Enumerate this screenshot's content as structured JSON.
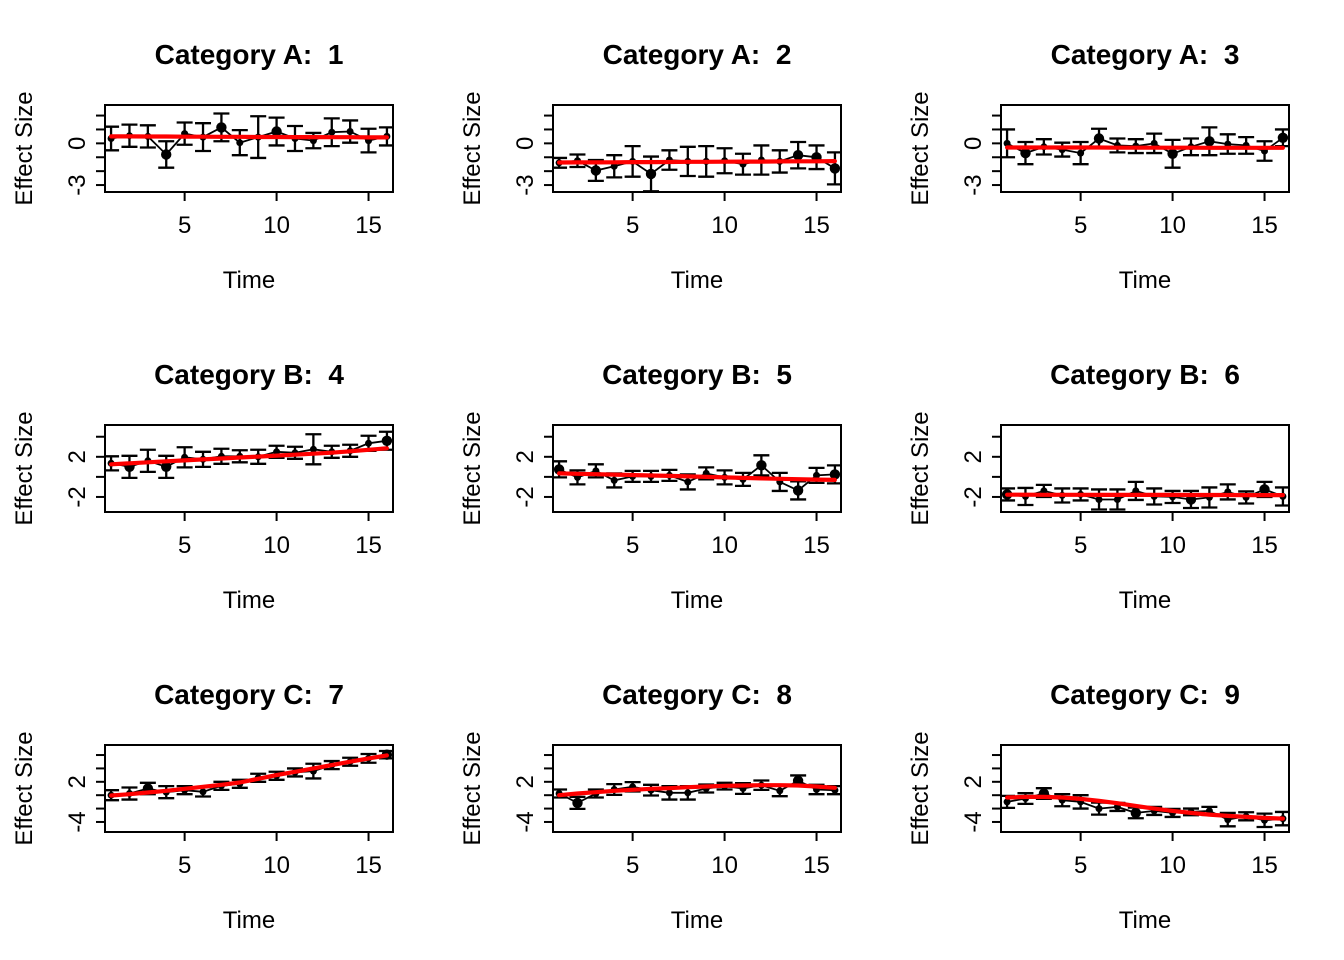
{
  "figure": {
    "background": "#ffffff",
    "trend_color": "#ff0000",
    "point_color": "#000000",
    "xlabel": "Time",
    "ylabel": "Effect Size",
    "x_values": [
      1,
      2,
      3,
      4,
      5,
      6,
      7,
      8,
      9,
      10,
      11,
      12,
      13,
      14,
      15,
      16
    ],
    "xlim": [
      0.67,
      16.33
    ],
    "x_ticks": {
      "values": [
        5,
        10,
        15
      ],
      "labels": [
        "5",
        "10",
        "15"
      ]
    }
  },
  "chart_data": [
    {
      "type": "scatter",
      "title": "Category A:  1",
      "xlabel": "Time",
      "ylabel": "Effect Size",
      "ylim": [
        -3.5,
        2.76
      ],
      "yticks": {
        "values": [
          2,
          1,
          0,
          -1,
          -2,
          -3
        ],
        "labels": [
          "",
          "",
          "0",
          "",
          "",
          "-3"
        ]
      },
      "y": [
        0.35,
        0.55,
        0.5,
        -0.8,
        0.7,
        0.45,
        1.15,
        0.05,
        0.45,
        0.85,
        0.35,
        0.2,
        0.8,
        0.85,
        0.2,
        0.5
      ],
      "se": [
        0.85,
        0.8,
        0.8,
        0.95,
        0.8,
        1.0,
        1.0,
        0.9,
        1.5,
        1.0,
        0.9,
        0.55,
        1.0,
        0.8,
        0.85,
        0.65
      ],
      "trend": [
        0.5,
        0.5,
        0.49,
        0.49,
        0.48,
        0.48,
        0.47,
        0.47,
        0.46,
        0.46,
        0.45,
        0.45,
        0.44,
        0.44,
        0.43,
        0.43
      ],
      "big_points": [
        4,
        7,
        10
      ]
    },
    {
      "type": "scatter",
      "title": "Category A:  2",
      "xlabel": "Time",
      "ylabel": "Effect Size",
      "ylim": [
        -3.5,
        2.76
      ],
      "yticks": {
        "values": [
          2,
          1,
          0,
          -1,
          -2,
          -3
        ],
        "labels": [
          "",
          "",
          "0",
          "",
          "",
          "-3"
        ]
      },
      "y": [
        -1.4,
        -1.25,
        -1.95,
        -1.65,
        -1.3,
        -2.2,
        -1.2,
        -1.3,
        -1.3,
        -1.25,
        -1.5,
        -1.2,
        -1.3,
        -0.85,
        -1.0,
        -1.8
      ],
      "se": [
        0.35,
        0.45,
        0.75,
        0.8,
        1.1,
        1.25,
        0.7,
        1.05,
        1.1,
        0.9,
        0.75,
        1.05,
        0.8,
        0.95,
        0.85,
        1.15
      ],
      "trend": [
        -1.38,
        -1.37,
        -1.37,
        -1.36,
        -1.35,
        -1.35,
        -1.34,
        -1.33,
        -1.33,
        -1.32,
        -1.31,
        -1.31,
        -1.3,
        -1.29,
        -1.29,
        -1.28
      ],
      "big_points": [
        3,
        6,
        14,
        15,
        16
      ]
    },
    {
      "type": "scatter",
      "title": "Category A:  3",
      "xlabel": "Time",
      "ylabel": "Effect Size",
      "ylim": [
        -3.5,
        2.76
      ],
      "yticks": {
        "values": [
          2,
          1,
          0,
          -1,
          -2,
          -3
        ],
        "labels": [
          "",
          "",
          "0",
          "",
          "",
          "-3"
        ]
      },
      "y": [
        0.0,
        -0.7,
        -0.25,
        -0.45,
        -0.7,
        0.35,
        -0.15,
        -0.2,
        0.0,
        -0.75,
        -0.25,
        0.15,
        -0.05,
        -0.15,
        -0.55,
        0.4
      ],
      "se": [
        1.0,
        0.8,
        0.55,
        0.5,
        0.8,
        0.7,
        0.5,
        0.5,
        0.7,
        1.0,
        0.6,
        1.0,
        0.7,
        0.6,
        0.7,
        0.6
      ],
      "trend": [
        -0.3,
        -0.3,
        -0.3,
        -0.3,
        -0.3,
        -0.3,
        -0.31,
        -0.31,
        -0.31,
        -0.31,
        -0.31,
        -0.32,
        -0.32,
        -0.32,
        -0.32,
        -0.32
      ],
      "big_points": [
        2,
        6,
        10,
        12,
        16
      ]
    },
    {
      "type": "scatter",
      "title": "Category B:  4",
      "xlabel": "Time",
      "ylabel": "Effect Size",
      "ylim": [
        -3.5,
        5.17
      ],
      "yticks": {
        "values": [
          4,
          2,
          0,
          -2
        ],
        "labels": [
          "",
          "2",
          "",
          "-2"
        ]
      },
      "y": [
        1.35,
        1.0,
        1.6,
        1.0,
        1.95,
        1.75,
        2.05,
        2.05,
        2.0,
        2.5,
        2.4,
        2.75,
        2.5,
        2.6,
        3.35,
        3.6
      ],
      "se": [
        0.7,
        1.1,
        1.1,
        1.1,
        1.0,
        0.75,
        0.75,
        0.6,
        0.7,
        0.6,
        0.6,
        1.5,
        0.6,
        0.6,
        0.75,
        0.9
      ],
      "trend": [
        1.25,
        1.35,
        1.45,
        1.55,
        1.64,
        1.74,
        1.83,
        1.93,
        2.02,
        2.12,
        2.21,
        2.31,
        2.41,
        2.55,
        2.7,
        2.85
      ],
      "big_points": [
        2,
        4,
        16
      ]
    },
    {
      "type": "scatter",
      "title": "Category B:  5",
      "xlabel": "Time",
      "ylabel": "Effect Size",
      "ylim": [
        -3.5,
        5.17
      ],
      "yticks": {
        "values": [
          4,
          2,
          0,
          -2
        ],
        "labels": [
          "",
          "2",
          "",
          "-2"
        ]
      },
      "y": [
        0.75,
        -0.05,
        0.6,
        -0.35,
        0.05,
        0.05,
        0.15,
        -0.5,
        0.35,
        -0.05,
        -0.25,
        1.15,
        -0.5,
        -1.35,
        0.15,
        0.25
      ],
      "se": [
        0.8,
        0.7,
        0.65,
        0.7,
        0.55,
        0.55,
        0.55,
        0.75,
        0.6,
        0.7,
        0.65,
        1.0,
        0.9,
        0.9,
        0.75,
        0.9
      ],
      "trend": [
        0.35,
        0.31,
        0.27,
        0.23,
        0.19,
        0.14,
        0.1,
        0.05,
        0.0,
        -0.05,
        -0.1,
        -0.15,
        -0.19,
        -0.23,
        -0.27,
        -0.3
      ],
      "big_points": [
        1,
        12,
        14,
        16
      ]
    },
    {
      "type": "scatter",
      "title": "Category B:  6",
      "xlabel": "Time",
      "ylabel": "Effect Size",
      "ylim": [
        -3.5,
        5.17
      ],
      "yticks": {
        "values": [
          4,
          2,
          0,
          -2
        ],
        "labels": [
          "",
          "2",
          "",
          "-2"
        ]
      },
      "y": [
        -1.75,
        -1.95,
        -1.4,
        -1.85,
        -1.75,
        -2.25,
        -2.25,
        -1.4,
        -1.95,
        -2.0,
        -2.25,
        -2.05,
        -1.5,
        -2.05,
        -1.25,
        -1.95
      ],
      "se": [
        0.6,
        0.85,
        0.6,
        0.7,
        0.6,
        1.0,
        1.0,
        0.9,
        0.8,
        0.6,
        0.85,
        1.0,
        0.75,
        0.6,
        0.75,
        0.9
      ],
      "trend": [
        -1.78,
        -1.78,
        -1.79,
        -1.79,
        -1.79,
        -1.8,
        -1.8,
        -1.8,
        -1.8,
        -1.8,
        -1.81,
        -1.81,
        -1.81,
        -1.82,
        -1.82,
        -1.82
      ],
      "big_points": [
        1,
        11,
        15
      ]
    },
    {
      "type": "scatter",
      "title": "Category C:  7",
      "xlabel": "Time",
      "ylabel": "Effect Size",
      "ylim": [
        -5.5,
        7.5
      ],
      "yticks": {
        "values": [
          6,
          4,
          2,
          0,
          -2,
          -4
        ],
        "labels": [
          "",
          "",
          "2",
          "",
          "",
          "-4"
        ]
      },
      "y": [
        0.0,
        0.25,
        1.0,
        0.45,
        0.75,
        0.5,
        1.4,
        1.7,
        2.6,
        2.9,
        3.4,
        3.6,
        4.5,
        5.0,
        5.5,
        6.05
      ],
      "se": [
        0.75,
        0.9,
        0.85,
        0.9,
        0.6,
        0.7,
        0.6,
        0.6,
        0.6,
        0.6,
        0.6,
        1.1,
        0.6,
        0.6,
        0.65,
        0.55
      ],
      "trend": [
        -0.05,
        0.15,
        0.4,
        0.65,
        0.95,
        1.25,
        1.55,
        1.9,
        2.45,
        3.0,
        3.5,
        4.0,
        4.5,
        5.0,
        5.5,
        5.95
      ],
      "big_points": [
        3,
        16
      ]
    },
    {
      "type": "scatter",
      "title": "Category C:  8",
      "xlabel": "Time",
      "ylabel": "Effect Size",
      "ylim": [
        -5.5,
        7.5
      ],
      "yticks": {
        "values": [
          6,
          4,
          2,
          0,
          -2,
          -4
        ],
        "labels": [
          "",
          "",
          "2",
          "",
          "",
          "-4"
        ]
      },
      "y": [
        0.25,
        -1.15,
        0.25,
        0.85,
        1.25,
        0.75,
        0.35,
        0.35,
        1.0,
        1.35,
        1.0,
        1.5,
        0.65,
        2.15,
        0.85,
        0.75
      ],
      "se": [
        0.6,
        0.9,
        0.6,
        0.8,
        0.7,
        0.8,
        1.0,
        1.0,
        0.6,
        0.5,
        0.8,
        0.7,
        0.8,
        0.8,
        0.7,
        0.6
      ],
      "trend": [
        0.0,
        0.25,
        0.45,
        0.65,
        0.8,
        0.95,
        1.05,
        1.2,
        1.3,
        1.4,
        1.45,
        1.5,
        1.5,
        1.45,
        1.3,
        1.1
      ],
      "big_points": [
        2,
        14
      ]
    },
    {
      "type": "scatter",
      "title": "Category C:  9",
      "xlabel": "Time",
      "ylabel": "Effect Size",
      "ylim": [
        -5.5,
        7.5
      ],
      "yticks": {
        "values": [
          6,
          4,
          2,
          0,
          -2,
          -4
        ],
        "labels": [
          "",
          "",
          "2",
          "",
          "",
          "-4"
        ]
      },
      "y": [
        -1.0,
        -0.5,
        0.25,
        -0.75,
        -1.0,
        -2.0,
        -1.75,
        -2.65,
        -2.35,
        -2.65,
        -2.5,
        -2.35,
        -3.65,
        -3.15,
        -3.75,
        -3.5
      ],
      "se": [
        0.9,
        0.8,
        0.8,
        0.9,
        1.0,
        0.9,
        0.6,
        0.8,
        0.6,
        0.6,
        0.5,
        0.6,
        1.0,
        0.6,
        1.0,
        1.0
      ],
      "trend": [
        -0.35,
        -0.25,
        -0.25,
        -0.35,
        -0.55,
        -0.85,
        -1.2,
        -1.6,
        -2.0,
        -2.35,
        -2.65,
        -2.9,
        -3.1,
        -3.25,
        -3.4,
        -3.5
      ],
      "big_points": [
        3,
        8
      ]
    }
  ]
}
